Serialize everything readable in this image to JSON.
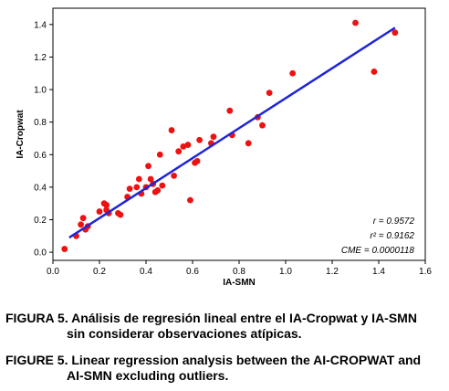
{
  "chart_data": {
    "type": "scatter",
    "xlabel": "IA-SMN",
    "ylabel": "IA-Cropwat",
    "xlim": [
      0,
      1.6
    ],
    "ylim": [
      -0.05,
      1.5
    ],
    "xticks": [
      "0.0",
      "0.2",
      "0.4",
      "0.6",
      "0.8",
      "1.0",
      "1.2",
      "1.4",
      "1.6"
    ],
    "yticks": [
      "0.0",
      "0.2",
      "0.4",
      "0.6",
      "0.8",
      "1.0",
      "1.2",
      "1.4"
    ],
    "grid": false,
    "point_color": "#ee1111",
    "line_color": "#1f25d6",
    "regression_line": {
      "x": [
        0.07,
        1.47
      ],
      "y": [
        0.09,
        1.38
      ]
    },
    "stats": [
      "r  = 0.9572",
      "r² = 0.9162",
      "CME = 0.0000118"
    ],
    "points": [
      {
        "x": 0.05,
        "y": 0.02
      },
      {
        "x": 0.1,
        "y": 0.1
      },
      {
        "x": 0.12,
        "y": 0.17
      },
      {
        "x": 0.13,
        "y": 0.21
      },
      {
        "x": 0.14,
        "y": 0.14
      },
      {
        "x": 0.15,
        "y": 0.16
      },
      {
        "x": 0.2,
        "y": 0.25
      },
      {
        "x": 0.22,
        "y": 0.3
      },
      {
        "x": 0.23,
        "y": 0.29
      },
      {
        "x": 0.23,
        "y": 0.26
      },
      {
        "x": 0.24,
        "y": 0.24
      },
      {
        "x": 0.28,
        "y": 0.24
      },
      {
        "x": 0.29,
        "y": 0.23
      },
      {
        "x": 0.32,
        "y": 0.34
      },
      {
        "x": 0.33,
        "y": 0.39
      },
      {
        "x": 0.36,
        "y": 0.4
      },
      {
        "x": 0.37,
        "y": 0.45
      },
      {
        "x": 0.38,
        "y": 0.36
      },
      {
        "x": 0.4,
        "y": 0.4
      },
      {
        "x": 0.41,
        "y": 0.53
      },
      {
        "x": 0.42,
        "y": 0.45
      },
      {
        "x": 0.43,
        "y": 0.42
      },
      {
        "x": 0.44,
        "y": 0.37
      },
      {
        "x": 0.45,
        "y": 0.38
      },
      {
        "x": 0.46,
        "y": 0.6
      },
      {
        "x": 0.47,
        "y": 0.41
      },
      {
        "x": 0.51,
        "y": 0.75
      },
      {
        "x": 0.52,
        "y": 0.47
      },
      {
        "x": 0.54,
        "y": 0.62
      },
      {
        "x": 0.56,
        "y": 0.65
      },
      {
        "x": 0.58,
        "y": 0.66
      },
      {
        "x": 0.59,
        "y": 0.32
      },
      {
        "x": 0.61,
        "y": 0.55
      },
      {
        "x": 0.62,
        "y": 0.56
      },
      {
        "x": 0.63,
        "y": 0.69
      },
      {
        "x": 0.68,
        "y": 0.67
      },
      {
        "x": 0.69,
        "y": 0.71
      },
      {
        "x": 0.76,
        "y": 0.87
      },
      {
        "x": 0.77,
        "y": 0.72
      },
      {
        "x": 0.84,
        "y": 0.67
      },
      {
        "x": 0.88,
        "y": 0.83
      },
      {
        "x": 0.9,
        "y": 0.78
      },
      {
        "x": 0.93,
        "y": 0.98
      },
      {
        "x": 1.03,
        "y": 1.1
      },
      {
        "x": 1.3,
        "y": 1.41
      },
      {
        "x": 1.38,
        "y": 1.11
      },
      {
        "x": 1.47,
        "y": 1.35
      }
    ]
  },
  "captions": {
    "es_line1": "FIGURA 5. Análisis de regresión lineal entre el IA-Cropwat y IA-SMN",
    "es_line2": "sin considerar observaciones atípicas.",
    "en_line1": "FIGURE 5. Linear regression analysis between the AI-CROPWAT and",
    "en_line2": "AI-SMN excluding outliers."
  }
}
